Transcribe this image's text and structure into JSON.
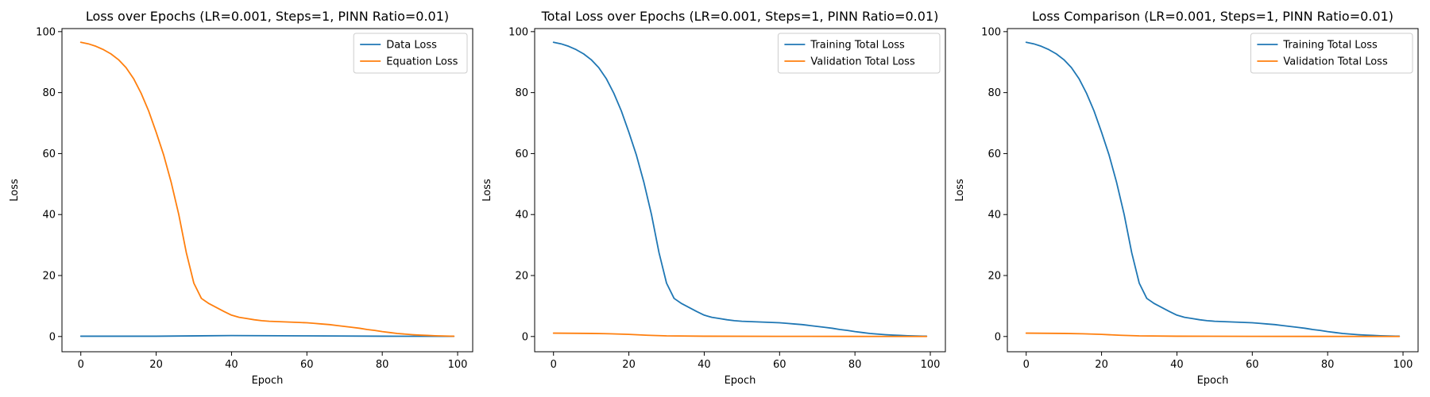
{
  "colors": {
    "blue": "#1f77b4",
    "orange": "#ff7f0e"
  },
  "chart_data": [
    {
      "type": "line",
      "title": "Loss over Epochs (LR=0.001, Steps=1, PINN Ratio=0.01)",
      "xlabel": "Epoch",
      "ylabel": "Loss",
      "xlim": [
        -5,
        104
      ],
      "ylim": [
        -5,
        101
      ],
      "xticks": [
        0,
        20,
        40,
        60,
        80,
        100
      ],
      "yticks": [
        0,
        20,
        40,
        60,
        80,
        100
      ],
      "grid": false,
      "legend_position": "top-right",
      "series": [
        {
          "name": "Data Loss",
          "color": "#1f77b4",
          "x": [
            0,
            20,
            40,
            60,
            80,
            99
          ],
          "y": [
            0.1,
            0.1,
            0.3,
            0.2,
            0.1,
            0.05
          ]
        },
        {
          "name": "Equation Loss",
          "color": "#ff7f0e",
          "x": [
            0,
            2,
            4,
            6,
            8,
            10,
            12,
            14,
            16,
            18,
            20,
            22,
            24,
            26,
            28,
            30,
            32,
            34,
            36,
            38,
            40,
            42,
            44,
            46,
            48,
            50,
            52,
            54,
            56,
            58,
            60,
            62,
            64,
            66,
            68,
            70,
            72,
            74,
            76,
            78,
            80,
            82,
            84,
            86,
            88,
            90,
            92,
            94,
            96,
            98,
            99
          ],
          "y": [
            96.5,
            96.0,
            95.2,
            94.1,
            92.7,
            90.8,
            88.2,
            84.6,
            79.8,
            74.0,
            67.0,
            59.5,
            50.5,
            40.0,
            27.5,
            17.5,
            12.5,
            10.8,
            9.5,
            8.2,
            7.0,
            6.3,
            5.9,
            5.5,
            5.2,
            5.0,
            4.9,
            4.8,
            4.7,
            4.6,
            4.5,
            4.3,
            4.1,
            3.9,
            3.6,
            3.3,
            3.0,
            2.7,
            2.3,
            2.0,
            1.6,
            1.3,
            1.0,
            0.8,
            0.6,
            0.45,
            0.35,
            0.25,
            0.18,
            0.12,
            0.1
          ]
        }
      ]
    },
    {
      "type": "line",
      "title": "Total Loss over Epochs (LR=0.001, Steps=1, PINN Ratio=0.01)",
      "xlabel": "Epoch",
      "ylabel": "Loss",
      "xlim": [
        -5,
        104
      ],
      "ylim": [
        -5,
        101
      ],
      "xticks": [
        0,
        20,
        40,
        60,
        80,
        100
      ],
      "yticks": [
        0,
        20,
        40,
        60,
        80,
        100
      ],
      "grid": false,
      "legend_position": "top-right",
      "series": [
        {
          "name": "Training Total Loss",
          "color": "#1f77b4",
          "x": [
            0,
            2,
            4,
            6,
            8,
            10,
            12,
            14,
            16,
            18,
            20,
            22,
            24,
            26,
            28,
            30,
            32,
            34,
            36,
            38,
            40,
            42,
            44,
            46,
            48,
            50,
            52,
            54,
            56,
            58,
            60,
            62,
            64,
            66,
            68,
            70,
            72,
            74,
            76,
            78,
            80,
            82,
            84,
            86,
            88,
            90,
            92,
            94,
            96,
            98,
            99
          ],
          "y": [
            96.5,
            96.0,
            95.2,
            94.1,
            92.7,
            90.8,
            88.2,
            84.6,
            79.8,
            74.0,
            67.0,
            59.5,
            50.5,
            40.0,
            27.5,
            17.5,
            12.5,
            10.8,
            9.5,
            8.2,
            7.0,
            6.3,
            5.9,
            5.5,
            5.2,
            5.0,
            4.9,
            4.8,
            4.7,
            4.6,
            4.5,
            4.3,
            4.1,
            3.9,
            3.6,
            3.3,
            3.0,
            2.7,
            2.3,
            2.0,
            1.6,
            1.3,
            1.0,
            0.8,
            0.6,
            0.45,
            0.35,
            0.25,
            0.18,
            0.12,
            0.1
          ]
        },
        {
          "name": "Validation Total Loss",
          "color": "#ff7f0e",
          "x": [
            0,
            10,
            15,
            20,
            25,
            30,
            40,
            60,
            80,
            99
          ],
          "y": [
            1.1,
            1.0,
            0.9,
            0.7,
            0.4,
            0.2,
            0.1,
            0.05,
            0.03,
            0.02
          ]
        }
      ]
    },
    {
      "type": "line",
      "title": "Loss Comparison (LR=0.001, Steps=1, PINN Ratio=0.01)",
      "xlabel": "Epoch",
      "ylabel": "Loss",
      "xlim": [
        -5,
        104
      ],
      "ylim": [
        -5,
        101
      ],
      "xticks": [
        0,
        20,
        40,
        60,
        80,
        100
      ],
      "yticks": [
        0,
        20,
        40,
        60,
        80,
        100
      ],
      "grid": false,
      "legend_position": "top-right",
      "series": [
        {
          "name": "Training Total Loss",
          "color": "#1f77b4",
          "x": [
            0,
            2,
            4,
            6,
            8,
            10,
            12,
            14,
            16,
            18,
            20,
            22,
            24,
            26,
            28,
            30,
            32,
            34,
            36,
            38,
            40,
            42,
            44,
            46,
            48,
            50,
            52,
            54,
            56,
            58,
            60,
            62,
            64,
            66,
            68,
            70,
            72,
            74,
            76,
            78,
            80,
            82,
            84,
            86,
            88,
            90,
            92,
            94,
            96,
            98,
            99
          ],
          "y": [
            96.5,
            96.0,
            95.2,
            94.1,
            92.7,
            90.8,
            88.2,
            84.6,
            79.8,
            74.0,
            67.0,
            59.5,
            50.5,
            40.0,
            27.5,
            17.5,
            12.5,
            10.8,
            9.5,
            8.2,
            7.0,
            6.3,
            5.9,
            5.5,
            5.2,
            5.0,
            4.9,
            4.8,
            4.7,
            4.6,
            4.5,
            4.3,
            4.1,
            3.9,
            3.6,
            3.3,
            3.0,
            2.7,
            2.3,
            2.0,
            1.6,
            1.3,
            1.0,
            0.8,
            0.6,
            0.45,
            0.35,
            0.25,
            0.18,
            0.12,
            0.1
          ]
        },
        {
          "name": "Validation Total Loss",
          "color": "#ff7f0e",
          "x": [
            0,
            10,
            15,
            20,
            25,
            30,
            40,
            60,
            80,
            99
          ],
          "y": [
            1.1,
            1.0,
            0.9,
            0.7,
            0.4,
            0.2,
            0.1,
            0.05,
            0.03,
            0.02
          ]
        }
      ]
    }
  ]
}
